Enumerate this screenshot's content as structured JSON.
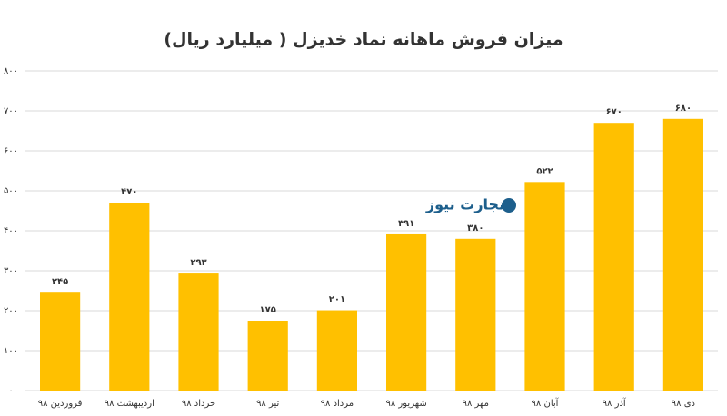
{
  "chart_data": {
    "type": "bar",
    "title": "میزان فروش ماهانه نماد خدیزل ( میلیارد ریال)",
    "watermark": "تجارت نیوز",
    "categories": [
      "فروردین ۹۸",
      "اردیبهشت ۹۸",
      "خرداد ۹۸",
      "تیر ۹۸",
      "مرداد ۹۸",
      "شهریور ۹۸",
      "مهر ۹۸",
      "آبان ۹۸",
      "آذر ۹۸",
      "دی ۹۸"
    ],
    "values": [
      245,
      470,
      293,
      175,
      201,
      391,
      380,
      522,
      670,
      680
    ],
    "value_labels": [
      "۲۴۵",
      "۴۷۰",
      "۲۹۳",
      "۱۷۵",
      "۲۰۱",
      "۳۹۱",
      "۳۸۰",
      "۵۲۲",
      "۶۷۰",
      "۶۸۰"
    ],
    "color": "#ffc000",
    "ylim": [
      0,
      800
    ],
    "yticks": [
      {
        "value": 0,
        "label": "۰"
      },
      {
        "value": 100,
        "label": "۱۰۰"
      },
      {
        "value": 200,
        "label": "۲۰۰"
      },
      {
        "value": 300,
        "label": "۳۰۰"
      },
      {
        "value": 400,
        "label": "۴۰۰"
      },
      {
        "value": 500,
        "label": "۵۰۰"
      },
      {
        "value": 600,
        "label": "۶۰۰"
      },
      {
        "value": 700,
        "label": "۷۰۰"
      },
      {
        "value": 800,
        "label": "۸۰۰"
      }
    ],
    "grid": true
  }
}
